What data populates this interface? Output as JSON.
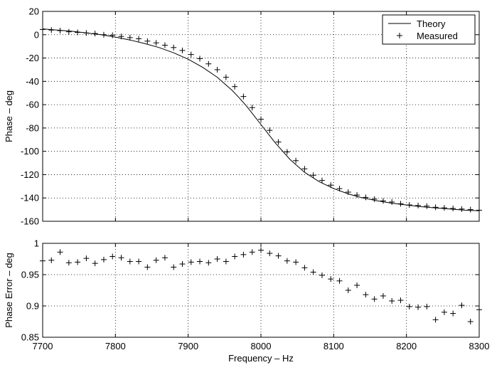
{
  "chart_data": [
    {
      "type": "line",
      "xlim": [
        7700,
        8300
      ],
      "ylim": [
        -160,
        20
      ],
      "xticks": [
        "7700",
        "7800",
        "7900",
        "8000",
        "8100",
        "8200",
        "8300"
      ],
      "yticks": [
        "20",
        "0",
        "-20",
        "-40",
        "-60",
        "-80",
        "-100",
        "-120",
        "-140",
        "-160"
      ],
      "xlabel": "",
      "ylabel": "Phase – deg",
      "grid": true,
      "legend_position": "top-right",
      "series": [
        {
          "name": "Theory",
          "style": "solid-line",
          "x": [
            7700,
            7720,
            7740,
            7760,
            7780,
            7800,
            7820,
            7840,
            7860,
            7880,
            7900,
            7920,
            7940,
            7960,
            7970,
            7980,
            7990,
            8000,
            8010,
            8020,
            8040,
            8060,
            8080,
            8100,
            8120,
            8140,
            8160,
            8180,
            8200,
            8220,
            8240,
            8260,
            8280,
            8300
          ],
          "y": [
            5,
            4,
            3,
            1.5,
            0,
            -2,
            -4.5,
            -7.5,
            -11,
            -15.5,
            -21,
            -28,
            -36.5,
            -47.5,
            -54,
            -61,
            -69,
            -77,
            -85,
            -93,
            -107,
            -118,
            -126,
            -132,
            -136.5,
            -140,
            -142.5,
            -144.5,
            -146,
            -147.5,
            -148.5,
            -149.5,
            -150.5,
            -151
          ]
        },
        {
          "name": "Measured",
          "style": "plus-marker",
          "x": [
            7700,
            7712,
            7724,
            7736,
            7748,
            7760,
            7772,
            7784,
            7796,
            7808,
            7820,
            7832,
            7844,
            7856,
            7868,
            7880,
            7892,
            7904,
            7916,
            7928,
            7940,
            7952,
            7964,
            7976,
            7988,
            8000,
            8012,
            8024,
            8036,
            8048,
            8060,
            8072,
            8084,
            8096,
            8108,
            8120,
            8132,
            8144,
            8156,
            8168,
            8180,
            8192,
            8204,
            8216,
            8228,
            8240,
            8252,
            8264,
            8276,
            8288,
            8300
          ],
          "y": [
            4.5,
            4,
            3.5,
            2.5,
            2,
            1.5,
            1,
            0,
            -0.5,
            -1.5,
            -2.5,
            -3.5,
            -5.5,
            -7,
            -9,
            -11,
            -13.5,
            -17,
            -20.5,
            -25,
            -30,
            -36.5,
            -44.5,
            -53,
            -62.5,
            -72.5,
            -82,
            -92,
            -100.5,
            -108,
            -115,
            -120.5,
            -125,
            -129,
            -132,
            -135,
            -137.5,
            -139.5,
            -141,
            -142.5,
            -143.5,
            -145,
            -146,
            -146.5,
            -147,
            -148,
            -148.5,
            -149,
            -149.5,
            -150,
            -150.5
          ]
        }
      ]
    },
    {
      "type": "scatter",
      "xlim": [
        7700,
        8300
      ],
      "ylim": [
        0.85,
        1
      ],
      "xticks": [
        "7700",
        "7800",
        "7900",
        "8000",
        "8100",
        "8200",
        "8300"
      ],
      "yticks": [
        "1",
        "0.95",
        "0.9",
        "0.85"
      ],
      "xlabel": "Frequency – Hz",
      "ylabel": "Phase Error – deg",
      "grid": true,
      "series": [
        {
          "style": "plus-marker",
          "x": [
            7700,
            7712,
            7724,
            7736,
            7748,
            7760,
            7772,
            7784,
            7796,
            7808,
            7820,
            7832,
            7844,
            7856,
            7868,
            7880,
            7892,
            7904,
            7916,
            7928,
            7940,
            7952,
            7964,
            7976,
            7988,
            8000,
            8012,
            8024,
            8036,
            8048,
            8060,
            8072,
            8084,
            8096,
            8108,
            8120,
            8132,
            8144,
            8156,
            8168,
            8180,
            8192,
            8204,
            8216,
            8228,
            8240,
            8252,
            8264,
            8276,
            8288,
            8300
          ],
          "y": [
            0.972,
            0.973,
            0.986,
            0.969,
            0.97,
            0.976,
            0.968,
            0.974,
            0.979,
            0.977,
            0.971,
            0.971,
            0.962,
            0.973,
            0.977,
            0.962,
            0.967,
            0.97,
            0.971,
            0.969,
            0.975,
            0.971,
            0.979,
            0.982,
            0.986,
            0.989,
            0.984,
            0.98,
            0.972,
            0.97,
            0.961,
            0.954,
            0.949,
            0.943,
            0.94,
            0.925,
            0.933,
            0.918,
            0.911,
            0.916,
            0.908,
            0.909,
            0.899,
            0.898,
            0.899,
            0.878,
            0.89,
            0.888,
            0.901,
            0.875,
            0.894
          ]
        }
      ]
    }
  ]
}
